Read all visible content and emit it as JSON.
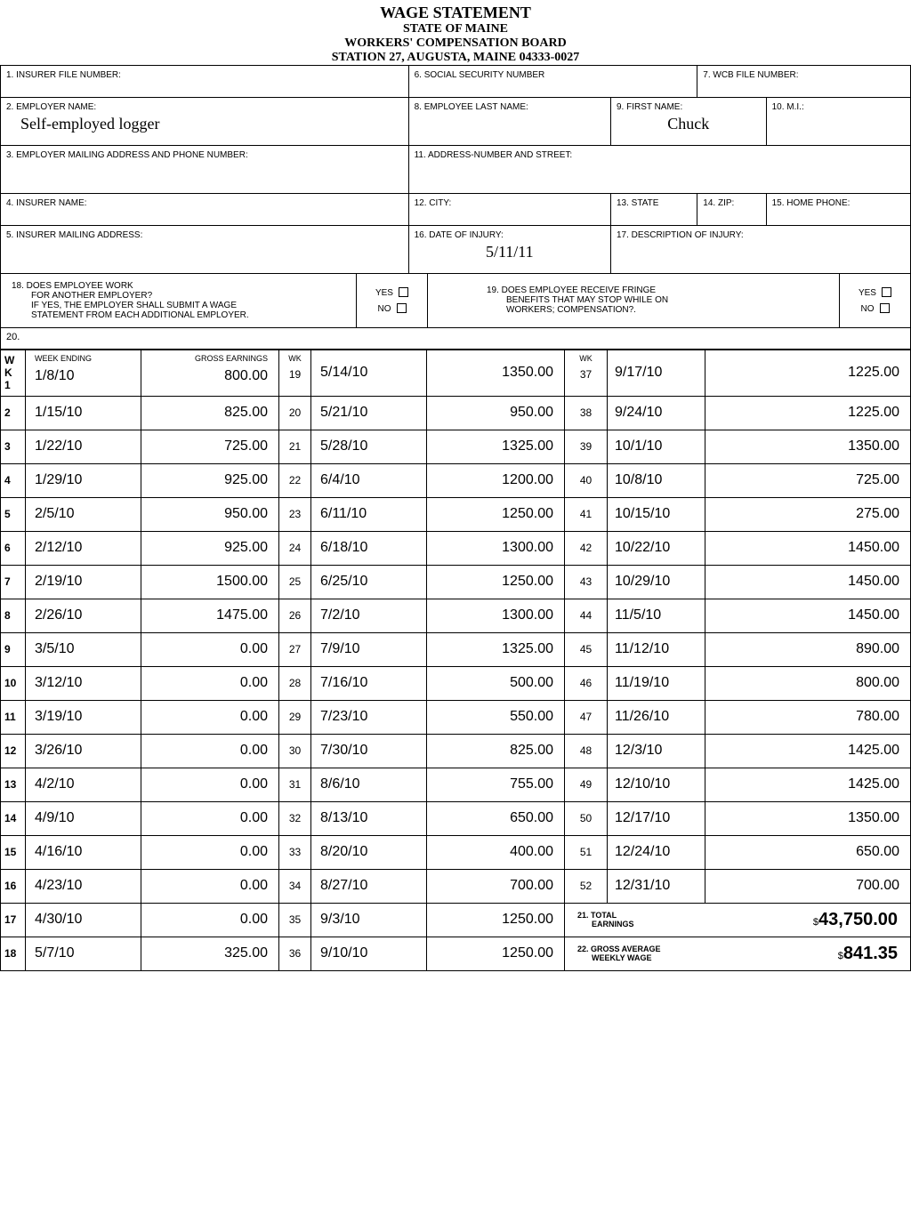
{
  "title": {
    "main": "WAGE STATEMENT",
    "line2": "STATE OF MAINE",
    "line3": "WORKERS' COMPENSATION BOARD",
    "line4": "STATION 27, AUGUSTA, MAINE 04333-0027"
  },
  "headers": {
    "field1_label": "1. INSURER FILE NUMBER:",
    "field2_label": "2. EMPLOYER NAME:",
    "field2_value": "Self-employed logger",
    "field3_label": "3. EMPLOYER MAILING ADDRESS AND PHONE NUMBER:",
    "field4_label": "4. INSURER NAME:",
    "field5_label": "5. INSURER MAILING ADDRESS:",
    "field6_label": "6. SOCIAL SECURITY NUMBER",
    "field7_label": "7. WCB FILE NUMBER:",
    "field8_label": "8. EMPLOYEE LAST NAME:",
    "field9_label": "9. FIRST NAME:",
    "field9_value": "Chuck",
    "field10_label": "10. M.I.:",
    "field11_label": "11. ADDRESS-NUMBER AND STREET:",
    "field12_label": "12. CITY:",
    "field13_label": "13. STATE",
    "field14_label": "14. ZIP:",
    "field15_label": "15. HOME PHONE:",
    "field16_label": "16. DATE OF INJURY:",
    "field16_value": "5/11/11",
    "field17_label": "17. DESCRIPTION OF INJURY:",
    "field18_label": "18. DOES EMPLOYEE WORK\n      FOR ANOTHER EMPLOYER?\n      IF YES, THE EMPLOYER SHALL SUBMIT A WAGE\n      STATEMENT FROM EACH ADDITIONAL EMPLOYER.",
    "field18_line1": "18. DOES EMPLOYEE WORK",
    "field18_line2": "FOR ANOTHER EMPLOYER?",
    "field18_line3": "IF YES, THE EMPLOYER SHALL SUBMIT A WAGE",
    "field18_line4": "STATEMENT FROM EACH ADDITIONAL EMPLOYER.",
    "field19_label": "19. DOES EMPLOYEE RECEIVE FRINGE\n      BENEFITS THAT MAY STOP WHILE ON\n      WORKERS; COMPENSATION?.",
    "field19_line1": "19. DOES EMPLOYEE RECEIVE FRINGE",
    "field19_line2": "BENEFITS THAT MAY STOP WHILE ON",
    "field19_line3": "WORKERS; COMPENSATION?.",
    "field20_label": "20.",
    "yes_label": "YES",
    "no_label": "NO",
    "wk_label": "W\nK\n1",
    "wk_col1": "W",
    "wk_col2": "K",
    "wk_col3": "1",
    "week_ending_label": "WEEK ENDING",
    "gross_earnings_label": "GROSS EARNINGS",
    "wk_header": "WK",
    "wk_19": "19"
  },
  "wage_rows": [
    {
      "wk1": "1",
      "date1": "1/8/10",
      "earn1": "800.00",
      "wk2": "19",
      "date2": "5/14/10",
      "earn2": "1350.00",
      "wk3": "37",
      "date3": "9/17/10",
      "earn3": "1225.00"
    },
    {
      "wk1": "2",
      "date1": "1/15/10",
      "earn1": "825.00",
      "wk2": "20",
      "date2": "5/21/10",
      "earn2": "950.00",
      "wk3": "38",
      "date3": "9/24/10",
      "earn3": "1225.00"
    },
    {
      "wk1": "3",
      "date1": "1/22/10",
      "earn1": "725.00",
      "wk2": "21",
      "date2": "5/28/10",
      "earn2": "1325.00",
      "wk3": "39",
      "date3": "10/1/10",
      "earn3": "1350.00"
    },
    {
      "wk1": "4",
      "date1": "1/29/10",
      "earn1": "925.00",
      "wk2": "22",
      "date2": "6/4/10",
      "earn2": "1200.00",
      "wk3": "40",
      "date3": "10/8/10",
      "earn3": "725.00"
    },
    {
      "wk1": "5",
      "date1": "2/5/10",
      "earn1": "950.00",
      "wk2": "23",
      "date2": "6/11/10",
      "earn2": "1250.00",
      "wk3": "41",
      "date3": "10/15/10",
      "earn3": "275.00"
    },
    {
      "wk1": "6",
      "date1": "2/12/10",
      "earn1": "925.00",
      "wk2": "24",
      "date2": "6/18/10",
      "earn2": "1300.00",
      "wk3": "42",
      "date3": "10/22/10",
      "earn3": "1450.00"
    },
    {
      "wk1": "7",
      "date1": "2/19/10",
      "earn1": "1500.00",
      "wk2": "25",
      "date2": "6/25/10",
      "earn2": "1250.00",
      "wk3": "43",
      "date3": "10/29/10",
      "earn3": "1450.00"
    },
    {
      "wk1": "8",
      "date1": "2/26/10",
      "earn1": "1475.00",
      "wk2": "26",
      "date2": "7/2/10",
      "earn2": "1300.00",
      "wk3": "44",
      "date3": "11/5/10",
      "earn3": "1450.00"
    },
    {
      "wk1": "9",
      "date1": "3/5/10",
      "earn1": "0.00",
      "wk2": "27",
      "date2": "7/9/10",
      "earn2": "1325.00",
      "wk3": "45",
      "date3": "11/12/10",
      "earn3": "890.00"
    },
    {
      "wk1": "10",
      "date1": "3/12/10",
      "earn1": "0.00",
      "wk2": "28",
      "date2": "7/16/10",
      "earn2": "500.00",
      "wk3": "46",
      "date3": "11/19/10",
      "earn3": "800.00"
    },
    {
      "wk1": "11",
      "date1": "3/19/10",
      "earn1": "0.00",
      "wk2": "29",
      "date2": "7/23/10",
      "earn2": "550.00",
      "wk3": "47",
      "date3": "11/26/10",
      "earn3": "780.00"
    },
    {
      "wk1": "12",
      "date1": "3/26/10",
      "earn1": "0.00",
      "wk2": "30",
      "date2": "7/30/10",
      "earn2": "825.00",
      "wk3": "48",
      "date3": "12/3/10",
      "earn3": "1425.00"
    },
    {
      "wk1": "13",
      "date1": "4/2/10",
      "earn1": "0.00",
      "wk2": "31",
      "date2": "8/6/10",
      "earn2": "755.00",
      "wk3": "49",
      "date3": "12/10/10",
      "earn3": "1425.00"
    },
    {
      "wk1": "14",
      "date1": "4/9/10",
      "earn1": "0.00",
      "wk2": "32",
      "date2": "8/13/10",
      "earn2": "650.00",
      "wk3": "50",
      "date3": "12/17/10",
      "earn3": "1350.00"
    },
    {
      "wk1": "15",
      "date1": "4/16/10",
      "earn1": "0.00",
      "wk2": "33",
      "date2": "8/20/10",
      "earn2": "400.00",
      "wk3": "51",
      "date3": "12/24/10",
      "earn3": "650.00"
    },
    {
      "wk1": "16",
      "date1": "4/23/10",
      "earn1": "0.00",
      "wk2": "34",
      "date2": "8/27/10",
      "earn2": "700.00",
      "wk3": "52",
      "date3": "12/31/10",
      "earn3": "700.00"
    }
  ],
  "row17": {
    "wk1": "17",
    "date1": "4/30/10",
    "earn1": "0.00",
    "wk2": "35",
    "date2": "9/3/10",
    "earn2": "1250.00"
  },
  "row18": {
    "wk1": "18",
    "date1": "5/7/10",
    "earn1": "325.00",
    "wk2": "36",
    "date2": "9/10/10",
    "earn2": "1250.00"
  },
  "totals": {
    "total_label": "21. TOTAL",
    "earnings_label": "EARNINGS",
    "total_value": "43,750.00",
    "avg_label1": "22. GROSS AVERAGE",
    "avg_label2": "WEEKLY WAGE",
    "avg_value": "841.35",
    "dollar": "$"
  }
}
